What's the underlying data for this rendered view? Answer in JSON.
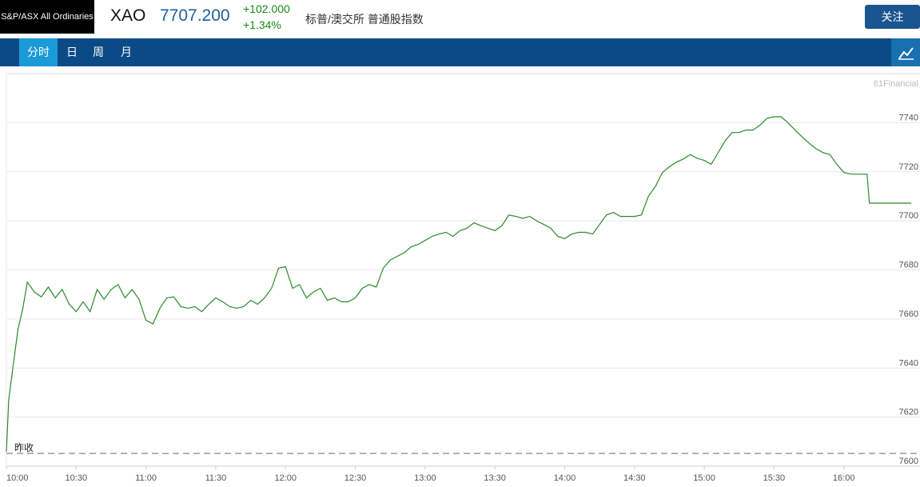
{
  "header": {
    "index_name": "S&P/ASX All Ordinaries",
    "code": "XAO",
    "price": "7707.200",
    "change": "+102.000",
    "change_pct": "+1.34%",
    "description": "标普/澳交所 普通股指数",
    "follow_button": "关注"
  },
  "tabs": [
    "分时",
    "日",
    "周",
    "月"
  ],
  "chart_data": {
    "type": "line",
    "color": "#2a8a2a",
    "watermark": "61Financial",
    "x": [
      "10:00",
      "10:01",
      "10:03",
      "10:05",
      "10:07",
      "10:09",
      "10:12",
      "10:15",
      "10:18",
      "10:21",
      "10:24",
      "10:27",
      "10:30",
      "10:33",
      "10:36",
      "10:39",
      "10:42",
      "10:45",
      "10:48",
      "10:51",
      "10:54",
      "10:57",
      "11:00",
      "11:03",
      "11:06",
      "11:09",
      "11:12",
      "11:15",
      "11:18",
      "11:21",
      "11:24",
      "11:27",
      "11:30",
      "11:33",
      "11:36",
      "11:39",
      "11:42",
      "11:45",
      "11:48",
      "11:51",
      "11:54",
      "11:57",
      "12:00",
      "12:03",
      "12:06",
      "12:09",
      "12:12",
      "12:15",
      "12:18",
      "12:21",
      "12:24",
      "12:27",
      "12:30",
      "12:33",
      "12:36",
      "12:39",
      "12:42",
      "12:45",
      "12:48",
      "12:51",
      "12:54",
      "12:57",
      "13:00",
      "13:03",
      "13:06",
      "13:09",
      "13:12",
      "13:15",
      "13:18",
      "13:21",
      "13:24",
      "13:27",
      "13:30",
      "13:33",
      "13:36",
      "13:39",
      "13:42",
      "13:45",
      "13:48",
      "13:51",
      "13:54",
      "13:57",
      "14:00",
      "14:03",
      "14:06",
      "14:09",
      "14:12",
      "14:15",
      "14:18",
      "14:21",
      "14:24",
      "14:27",
      "14:30",
      "14:33",
      "14:36",
      "14:39",
      "14:42",
      "14:45",
      "14:48",
      "14:51",
      "14:54",
      "14:57",
      "15:00",
      "15:03",
      "15:06",
      "15:09",
      "15:12",
      "15:15",
      "15:18",
      "15:21",
      "15:24",
      "15:27",
      "15:30",
      "15:33",
      "15:36",
      "15:39",
      "15:42",
      "15:45",
      "15:48",
      "15:51",
      "15:54",
      "15:57",
      "16:00",
      "16:03",
      "16:10",
      "16:11",
      "16:29"
    ],
    "values": [
      7605.9,
      7627,
      7641.6,
      7656,
      7664,
      7675,
      7671,
      7669,
      7673,
      7668.6,
      7672,
      7666,
      7663,
      7667,
      7663,
      7672,
      7668,
      7672,
      7674,
      7668.6,
      7672,
      7668,
      7659.5,
      7658,
      7664.4,
      7668.6,
      7669,
      7665,
      7664.4,
      7665,
      7663,
      7666,
      7668.6,
      7667,
      7665,
      7664.4,
      7665,
      7667.6,
      7666,
      7668.6,
      7672.5,
      7680.7,
      7681.3,
      7672.5,
      7674,
      7668.6,
      7671,
      7672.5,
      7667.6,
      7668.6,
      7667,
      7667,
      7668.6,
      7672.5,
      7674,
      7673,
      7680.7,
      7684,
      7685.5,
      7687,
      7689.4,
      7690.4,
      7692,
      7693.7,
      7694.6,
      7695.3,
      7693.7,
      7696,
      7697,
      7699.2,
      7698,
      7697,
      7696,
      7698,
      7702.4,
      7701.8,
      7701,
      7701.8,
      7700,
      7698.5,
      7697,
      7693.7,
      7692.7,
      7694.6,
      7695.3,
      7695.3,
      7694.6,
      7698.5,
      7702.4,
      7703.4,
      7701.8,
      7701.8,
      7701.8,
      7702.4,
      7710,
      7714,
      7719.7,
      7722,
      7723.9,
      7725.2,
      7727,
      7725.5,
      7724.6,
      7723,
      7727.8,
      7732.7,
      7736,
      7736,
      7737,
      7737,
      7739,
      7741.8,
      7742.4,
      7742.4,
      7740,
      7737,
      7734.3,
      7731.7,
      7729.4,
      7727.8,
      7727,
      7723,
      7719.7,
      7719,
      7719,
      7707.2,
      7707.2
    ],
    "xlim": [
      "10:00",
      "16:30"
    ],
    "xticks": [
      "10:00",
      "10:30",
      "11:00",
      "11:30",
      "12:00",
      "12:30",
      "13:00",
      "13:30",
      "14:00",
      "14:30",
      "15:00",
      "15:30",
      "16:00"
    ],
    "ylim": [
      7600,
      7760
    ],
    "yticks": [
      7600,
      7620,
      7640,
      7660,
      7680,
      7700,
      7720,
      7740
    ],
    "grid": true,
    "prev_close": {
      "label": "昨收",
      "value": 7605.2
    }
  }
}
